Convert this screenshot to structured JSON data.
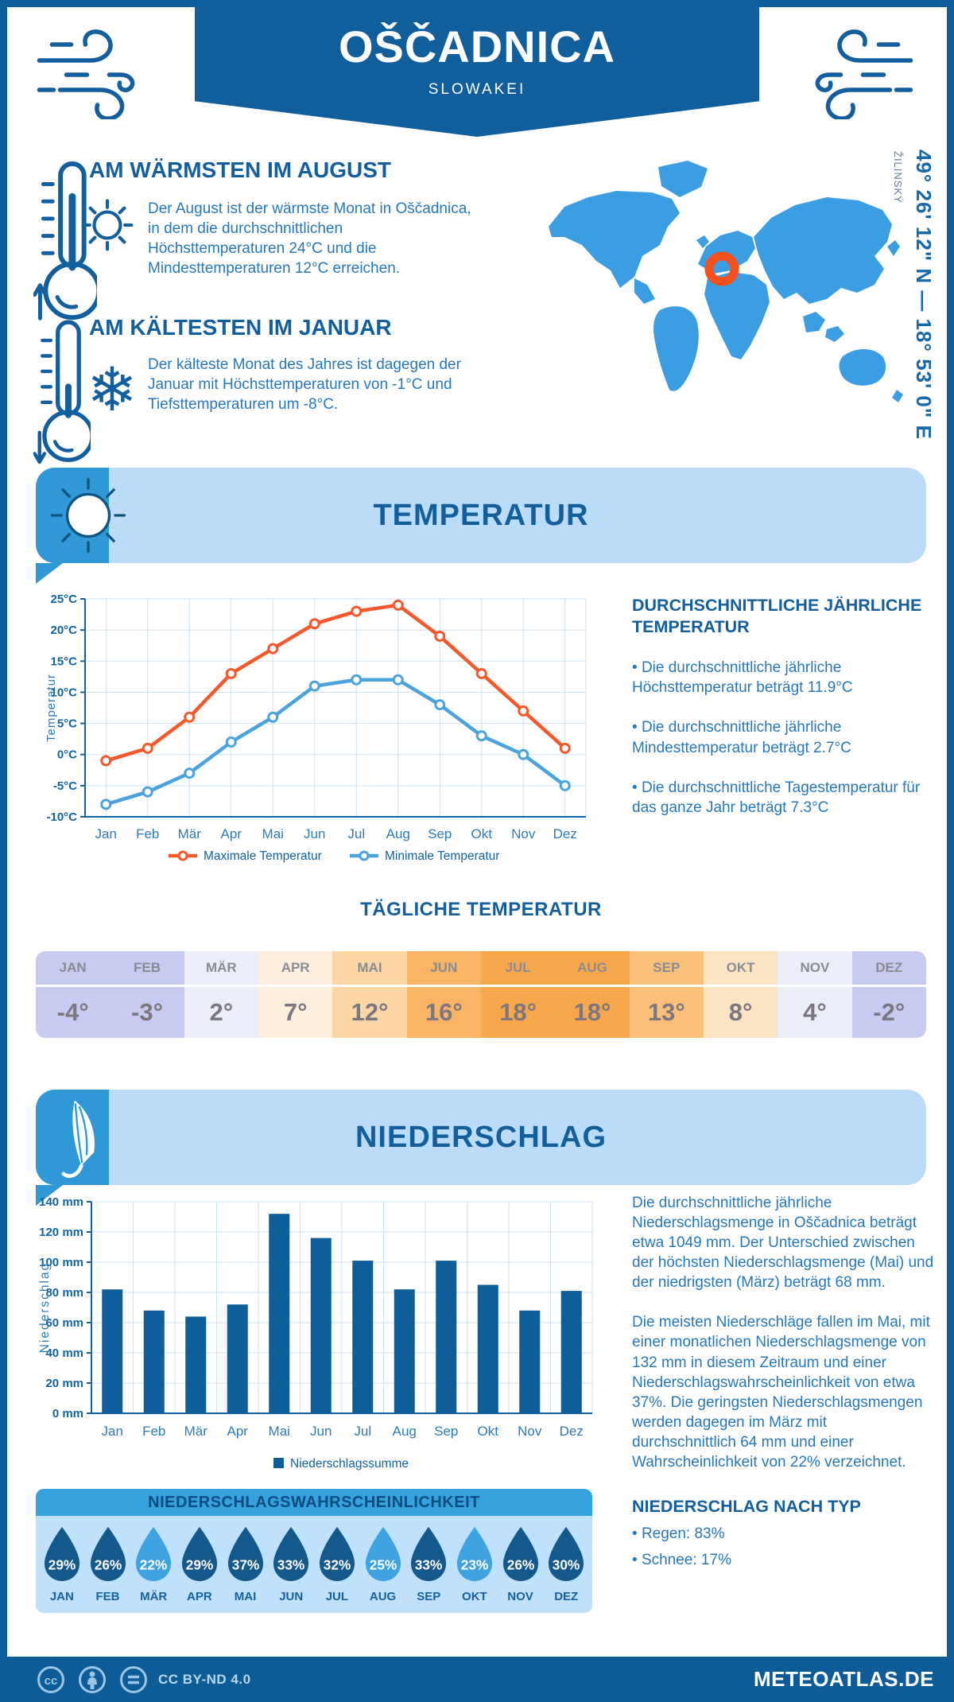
{
  "header": {
    "title": "OŠČADNICA",
    "subtitle": "SLOWAKEI"
  },
  "highlights": [
    {
      "title": "AM WÄRMSTEN IM AUGUST",
      "text": "Der August ist der wärmste Monat in Oščadnica, in dem die durchschnittlichen Höchsttemperaturen 24°C und die Mindesttemperaturen 12°C erreichen."
    },
    {
      "title": "AM KÄLTESTEN IM JANUAR",
      "text": "Der kälteste Monat des Jahres ist dagegen der Januar mit Höchsttemperaturen von -1°C und Tiefsttemperaturen um -8°C."
    }
  ],
  "map": {
    "region": "ŽILINSKÝ",
    "coordinates": "49° 26' 12\" N — 18° 53' 0\" E",
    "land_color": "#3b9ee3",
    "marker_color": "#f4501e"
  },
  "sections": {
    "temperature": "TEMPERATUR",
    "precipitation": "NIEDERSCHLAG"
  },
  "chart_data": [
    {
      "type": "line",
      "x": [
        "Jan",
        "Feb",
        "Mär",
        "Apr",
        "Mai",
        "Jun",
        "Jul",
        "Aug",
        "Sep",
        "Okt",
        "Nov",
        "Dez"
      ],
      "ylabel": "Temperatur",
      "ylim": [
        -10,
        25
      ],
      "ytick_step": 5,
      "ytick_suffix": "°C",
      "grid": true,
      "legend_position": "bottom",
      "series": [
        {
          "name": "Maximale Temperatur",
          "color": "#f4582b",
          "values": [
            -1,
            1,
            6,
            13,
            17,
            21,
            23,
            24,
            19,
            13,
            7,
            1
          ]
        },
        {
          "name": "Minimale Temperatur",
          "color": "#4aa3dc",
          "values": [
            -8,
            -6,
            -3,
            2,
            6,
            11,
            12,
            12,
            8,
            3,
            0,
            -5
          ]
        }
      ]
    },
    {
      "type": "bar",
      "categories": [
        "Jan",
        "Feb",
        "Mär",
        "Apr",
        "Mai",
        "Jun",
        "Jul",
        "Aug",
        "Sep",
        "Okt",
        "Nov",
        "Dez"
      ],
      "ylabel": "Niederschlag",
      "ylim": [
        0,
        140
      ],
      "ytick_step": 20,
      "ytick_suffix": " mm",
      "grid": true,
      "legend_position": "bottom",
      "series": [
        {
          "name": "Niederschlagssumme",
          "color": "#0d5e99",
          "values": [
            82,
            68,
            64,
            72,
            132,
            116,
            101,
            82,
            101,
            85,
            68,
            81
          ]
        }
      ]
    }
  ],
  "annual_temperature": {
    "title": "DURCHSCHNITTLICHE JÄHRLICHE TEMPERATUR",
    "bullets": [
      "Die durchschnittliche jährliche Höchsttemperatur beträgt 11.9°C",
      "Die durchschnittliche jährliche Mindesttemperatur beträgt 2.7°C",
      "Die durchschnittliche Tagestemperatur für das ganze Jahr beträgt 7.3°C"
    ]
  },
  "daily_temperature": {
    "title": "TÄGLICHE TEMPERATUR",
    "months": [
      "JAN",
      "FEB",
      "MÄR",
      "APR",
      "MAI",
      "JUN",
      "JUL",
      "AUG",
      "SEP",
      "OKT",
      "NOV",
      "DEZ"
    ],
    "values": [
      "-4°",
      "-3°",
      "2°",
      "7°",
      "12°",
      "16°",
      "18°",
      "18°",
      "13°",
      "8°",
      "4°",
      "-2°"
    ],
    "cell_colors": [
      "#c8cbf1",
      "#c8cbf1",
      "#ebedf9",
      "#fdeedd",
      "#fcd6a4",
      "#f9b466",
      "#f8a74a",
      "#f8a74a",
      "#fabf78",
      "#fce3c1",
      "#ebedf9",
      "#c8cbf1"
    ]
  },
  "precipitation_text": {
    "paragraphs": [
      "Die durchschnittliche jährliche Niederschlagsmenge in Oščadnica beträgt etwa 1049 mm. Der Unterschied zwischen der höchsten Niederschlagsmenge (Mai) und der niedrigsten (März) beträgt 68 mm.",
      "Die meisten Niederschläge fallen im Mai, mit einer monatlichen Niederschlagsmenge von 132 mm in diesem Zeitraum und einer Niederschlagswahrscheinlichkeit von etwa 37%. Die geringsten Niederschlagsmengen werden dagegen im März mit durchschnittlich 64 mm und einer Wahrscheinlichkeit von 22% verzeichnet."
    ]
  },
  "precipitation_type": {
    "title": "NIEDERSCHLAG NACH TYP",
    "bullets": [
      "Regen: 83%",
      "Schnee: 17%"
    ]
  },
  "precipitation_probability": {
    "title": "NIEDERSCHLAGSWAHRSCHEINLICHKEIT",
    "months": [
      "JAN",
      "FEB",
      "MÄR",
      "APR",
      "MAI",
      "JUN",
      "JUL",
      "AUG",
      "SEP",
      "OKT",
      "NOV",
      "DEZ"
    ],
    "values_pct": [
      29,
      26,
      22,
      29,
      37,
      33,
      32,
      25,
      33,
      23,
      26,
      30
    ],
    "shades": [
      "dark",
      "dark",
      "light",
      "dark",
      "dark",
      "dark",
      "dark",
      "light",
      "dark",
      "light",
      "dark",
      "dark"
    ],
    "colors": {
      "dark": "#14598c",
      "light": "#3fa3e1"
    }
  },
  "icons": {
    "snowflake_glyph": "❄"
  },
  "footer": {
    "license": "CC BY-ND 4.0",
    "site": "METEOATLAS.DE"
  }
}
